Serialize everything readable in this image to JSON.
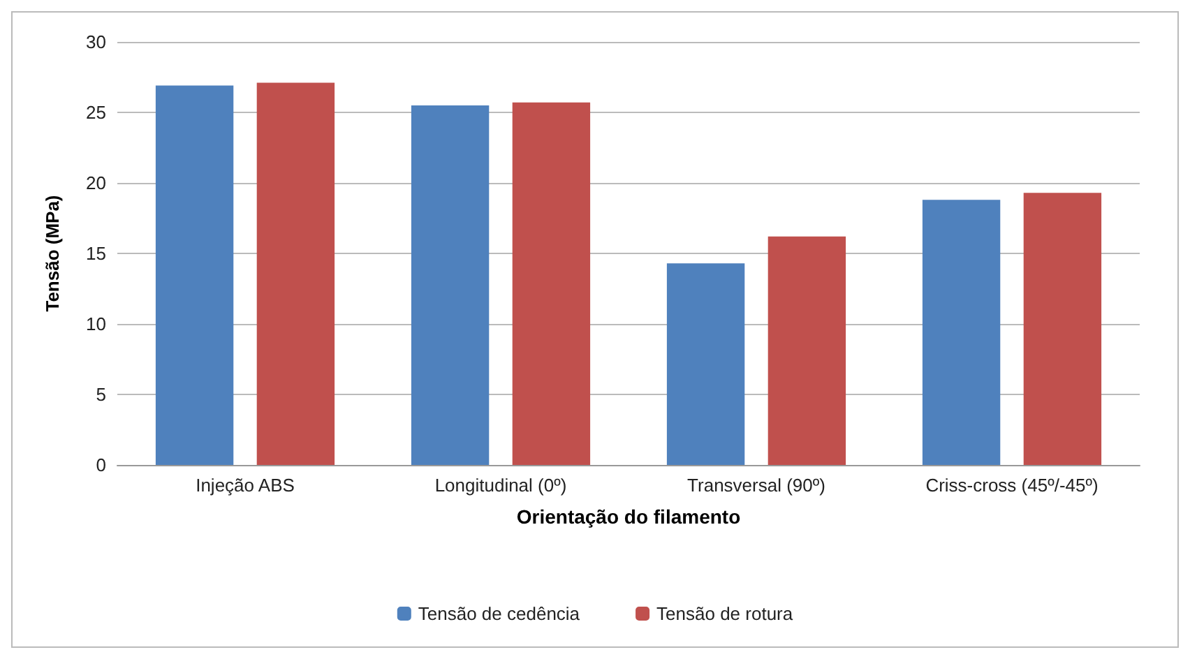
{
  "chart_data": {
    "type": "bar",
    "xlabel": "Orientação do filamento",
    "ylabel": "Tensão (MPa)",
    "categories": [
      "Injeção ABS",
      "Longitudinal (0º)",
      "Transversal (90º)",
      "Criss-cross (45º/-45º)"
    ],
    "series": [
      {
        "name": "Tensão de cedência",
        "color": "#4f81bd",
        "values": [
          26.9,
          25.5,
          14.3,
          18.8
        ]
      },
      {
        "name": "Tensão de rotura",
        "color": "#c0504d",
        "values": [
          27.1,
          25.7,
          16.2,
          19.3
        ]
      }
    ],
    "ylim": [
      0,
      30
    ],
    "yticks": [
      0,
      5,
      10,
      15,
      20,
      25,
      30
    ],
    "grid": "y",
    "legend": "bottom"
  }
}
